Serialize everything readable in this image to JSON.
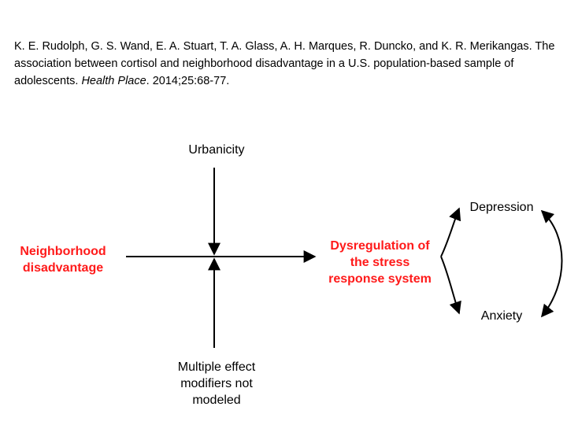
{
  "citation": {
    "authors": "K. E. Rudolph, G. S. Wand, E. A. Stuart, T. A. Glass, A. H. Marques, R. Duncko, and K. R. Merikangas.",
    "title": "The association between cortisol and neighborhood disadvantage in a U.S. population-based sample of adolescents.",
    "journal": "Health Place",
    "details": ". 2014;25:68-77."
  },
  "diagram": {
    "nodes": {
      "urbanicity": [
        "Urbanicity"
      ],
      "neighborhood_disadvantage": [
        "Neighborhood",
        "disadvantage"
      ],
      "dysregulation": [
        "Dysregulation of",
        "the stress",
        "response system"
      ],
      "depression": [
        "Depression"
      ],
      "anxiety": [
        "Anxiety"
      ],
      "effect_modifiers": [
        "Multiple effect",
        "modifiers not",
        "modeled"
      ]
    },
    "colors": {
      "highlight": "#ff1a1a",
      "text": "#000000",
      "edges": "#000000"
    }
  }
}
